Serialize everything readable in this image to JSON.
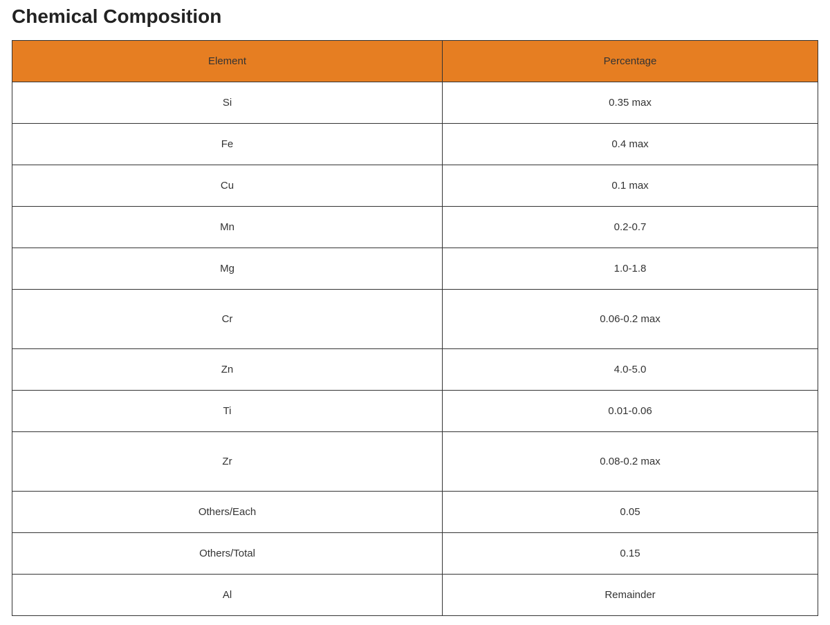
{
  "title": "Chemical Composition",
  "table": {
    "header_color": "#e67e22",
    "headers": [
      "Element",
      "Percentage"
    ],
    "rows": [
      [
        "Si",
        "0.35 max"
      ],
      [
        "Fe",
        "0.4 max"
      ],
      [
        "Cu",
        "0.1 max"
      ],
      [
        "Mn",
        "0.2-0.7"
      ],
      [
        "Mg",
        "1.0-1.8"
      ],
      [
        "Cr",
        "0.06-0.2 max"
      ],
      [
        "Zn",
        "4.0-5.0"
      ],
      [
        "Ti",
        "0.01-0.06"
      ],
      [
        "Zr",
        "0.08-0.2 max"
      ],
      [
        "Others/Each",
        "0.05"
      ],
      [
        "Others/Total",
        "0.15"
      ],
      [
        "Al",
        "Remainder"
      ]
    ]
  }
}
